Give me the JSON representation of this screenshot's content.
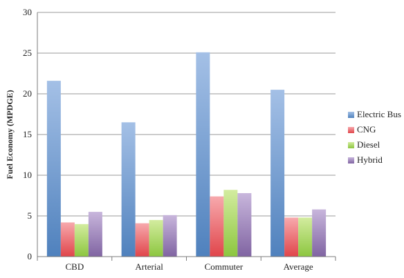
{
  "chart_data": {
    "type": "bar",
    "title": "",
    "xlabel": "",
    "ylabel": "Fuel Economy (MPDGE)",
    "ylim": [
      0,
      30
    ],
    "yticks": [
      0,
      5,
      10,
      15,
      20,
      25,
      30
    ],
    "grid": true,
    "legend_position": "right",
    "categories": [
      "CBD",
      "Arterial",
      "Commuter",
      "Average"
    ],
    "series": [
      {
        "name": "Electric Bus",
        "values": [
          21.6,
          16.5,
          25.1,
          20.5
        ],
        "color": "#4f81bd",
        "color_light": "#a4c0e6"
      },
      {
        "name": "CNG",
        "values": [
          4.2,
          4.1,
          7.4,
          4.8
        ],
        "color": "#e0454a",
        "color_light": "#f7a9ad"
      },
      {
        "name": "Diesel",
        "values": [
          4.0,
          4.5,
          8.2,
          4.8
        ],
        "color": "#8cc63f",
        "color_light": "#d3ec9f"
      },
      {
        "name": "Hybrid",
        "values": [
          5.5,
          5.1,
          7.8,
          5.8
        ],
        "color": "#8064a2",
        "color_light": "#c8b6dc"
      }
    ]
  }
}
